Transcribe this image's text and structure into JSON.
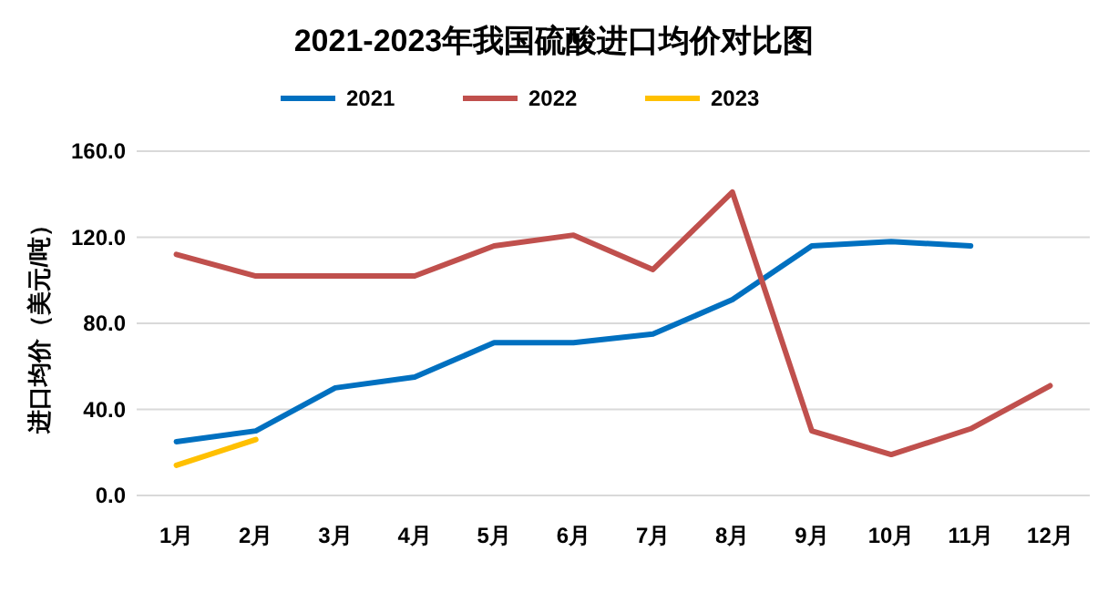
{
  "chart_data": {
    "type": "line",
    "title": "2021-2023年我国硫酸进口均价对比图",
    "ylabel": "进口均价（美元/吨）",
    "categories": [
      "1月",
      "2月",
      "3月",
      "4月",
      "5月",
      "6月",
      "7月",
      "8月",
      "9月",
      "10月",
      "11月",
      "12月"
    ],
    "series": [
      {
        "name": "2021",
        "color": "#0070c0",
        "values": [
          25,
          30,
          50,
          55,
          71,
          71,
          75,
          91,
          116,
          118,
          116,
          null
        ]
      },
      {
        "name": "2022",
        "color": "#c0504d",
        "values": [
          112,
          102,
          102,
          102,
          116,
          121,
          105,
          141,
          30,
          19,
          31,
          51
        ]
      },
      {
        "name": "2023",
        "color": "#ffc000",
        "values": [
          14,
          26,
          null,
          null,
          null,
          null,
          null,
          null,
          null,
          null,
          null,
          null
        ]
      }
    ],
    "ylim": [
      0,
      160
    ],
    "yticks": [
      {
        "value": 0,
        "label": "0.0"
      },
      {
        "value": 40,
        "label": "40.0"
      },
      {
        "value": 80,
        "label": "80.0"
      },
      {
        "value": 120,
        "label": "120.0"
      },
      {
        "value": 160,
        "label": "160.0"
      }
    ],
    "grid": "y",
    "legend": "top",
    "marker": "none",
    "line_style": "solid"
  }
}
